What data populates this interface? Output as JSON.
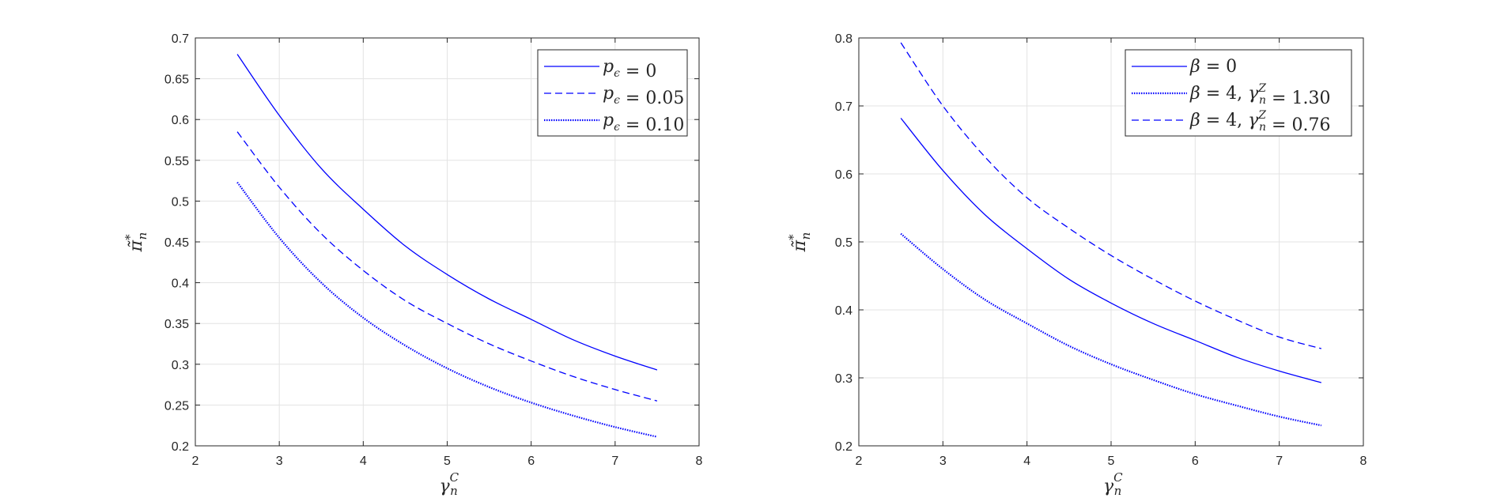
{
  "chart_data": [
    {
      "type": "line",
      "xlabel": "γ_n^C",
      "ylabel": "π̃*_n",
      "xlim": [
        2,
        8
      ],
      "ylim": [
        0.2,
        0.7
      ],
      "xticks": [
        2,
        3,
        4,
        5,
        6,
        7,
        8
      ],
      "yticks": [
        0.2,
        0.25,
        0.3,
        0.35,
        0.4,
        0.45,
        0.5,
        0.55,
        0.6,
        0.65,
        0.7
      ],
      "grid": true,
      "legend_position": "top-right",
      "color": "#0000ff",
      "x": [
        2.5,
        3,
        3.5,
        4,
        4.5,
        5,
        5.5,
        6,
        6.5,
        7,
        7.5
      ],
      "series": [
        {
          "name": "p_ϵ = 0",
          "style": "solid",
          "values": [
            0.68,
            0.605,
            0.54,
            0.49,
            0.445,
            0.41,
            0.38,
            0.355,
            0.33,
            0.31,
            0.293
          ]
        },
        {
          "name": "p_ϵ = 0.05",
          "style": "dashed",
          "values": [
            0.585,
            0.517,
            0.46,
            0.415,
            0.378,
            0.35,
            0.325,
            0.304,
            0.285,
            0.269,
            0.255
          ]
        },
        {
          "name": "p_ϵ = 0.10",
          "style": "dotted",
          "values": [
            0.523,
            0.455,
            0.4,
            0.357,
            0.323,
            0.295,
            0.272,
            0.253,
            0.237,
            0.223,
            0.211
          ]
        }
      ]
    },
    {
      "type": "line",
      "xlabel": "γ_n^C",
      "ylabel": "π̃*_n",
      "xlim": [
        2,
        8
      ],
      "ylim": [
        0.2,
        0.8
      ],
      "xticks": [
        2,
        3,
        4,
        5,
        6,
        7,
        8
      ],
      "yticks": [
        0.2,
        0.3,
        0.4,
        0.5,
        0.6,
        0.7,
        0.8
      ],
      "grid": true,
      "legend_position": "top-right",
      "color": "#0000ff",
      "x": [
        2.5,
        3,
        3.5,
        4,
        4.5,
        5,
        5.5,
        6,
        6.5,
        7,
        7.5
      ],
      "series": [
        {
          "name": "β = 0",
          "style": "solid",
          "values": [
            0.682,
            0.605,
            0.54,
            0.49,
            0.445,
            0.41,
            0.38,
            0.355,
            0.33,
            0.31,
            0.293
          ]
        },
        {
          "name": "β = 4, γ_n^Z = 1.30",
          "style": "dotted",
          "values": [
            0.512,
            0.46,
            0.415,
            0.38,
            0.347,
            0.32,
            0.297,
            0.276,
            0.259,
            0.243,
            0.23
          ]
        },
        {
          "name": "β = 4, γ_n^Z = 0.76",
          "style": "dashed",
          "values": [
            0.793,
            0.7,
            0.625,
            0.565,
            0.52,
            0.48,
            0.445,
            0.413,
            0.385,
            0.36,
            0.343
          ]
        }
      ]
    }
  ]
}
